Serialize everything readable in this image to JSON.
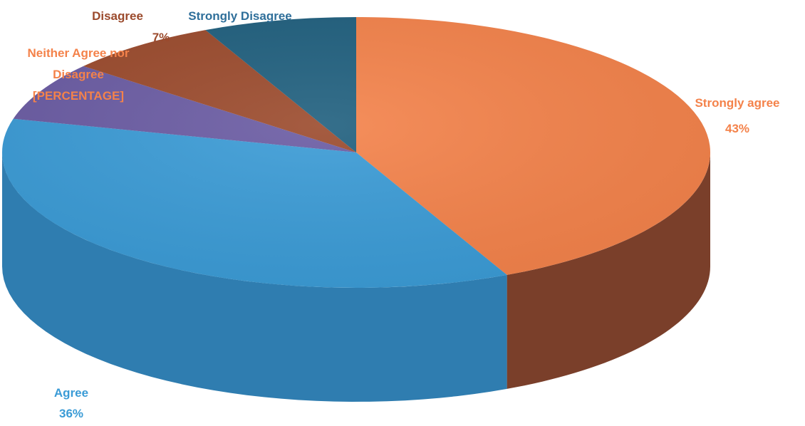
{
  "chart_data": {
    "type": "pie",
    "style": "3d",
    "title": "",
    "slices": [
      {
        "label": "Strongly agree",
        "value": 43,
        "value_label": "43%",
        "color": "#F4824A",
        "side_color": "#7A3F2A"
      },
      {
        "label": "Agree",
        "value": 36,
        "value_label": "36%",
        "color": "#3A9BD6",
        "side_color": "#2F7DB0"
      },
      {
        "label": "Neither Agree nor Disagree",
        "value": 7,
        "value_label": "[PERCENTAGE]",
        "color": "#6A5BA3",
        "side_color": "#4C3F7E"
      },
      {
        "label": "Disagree",
        "value": 7,
        "value_label": "7%",
        "color": "#9B4A2C",
        "side_color": "#6E331E"
      },
      {
        "label": "Strongly Disagree",
        "value": 7,
        "value_label": "",
        "color": "#1F5F7E",
        "side_color": "#174860"
      }
    ]
  }
}
